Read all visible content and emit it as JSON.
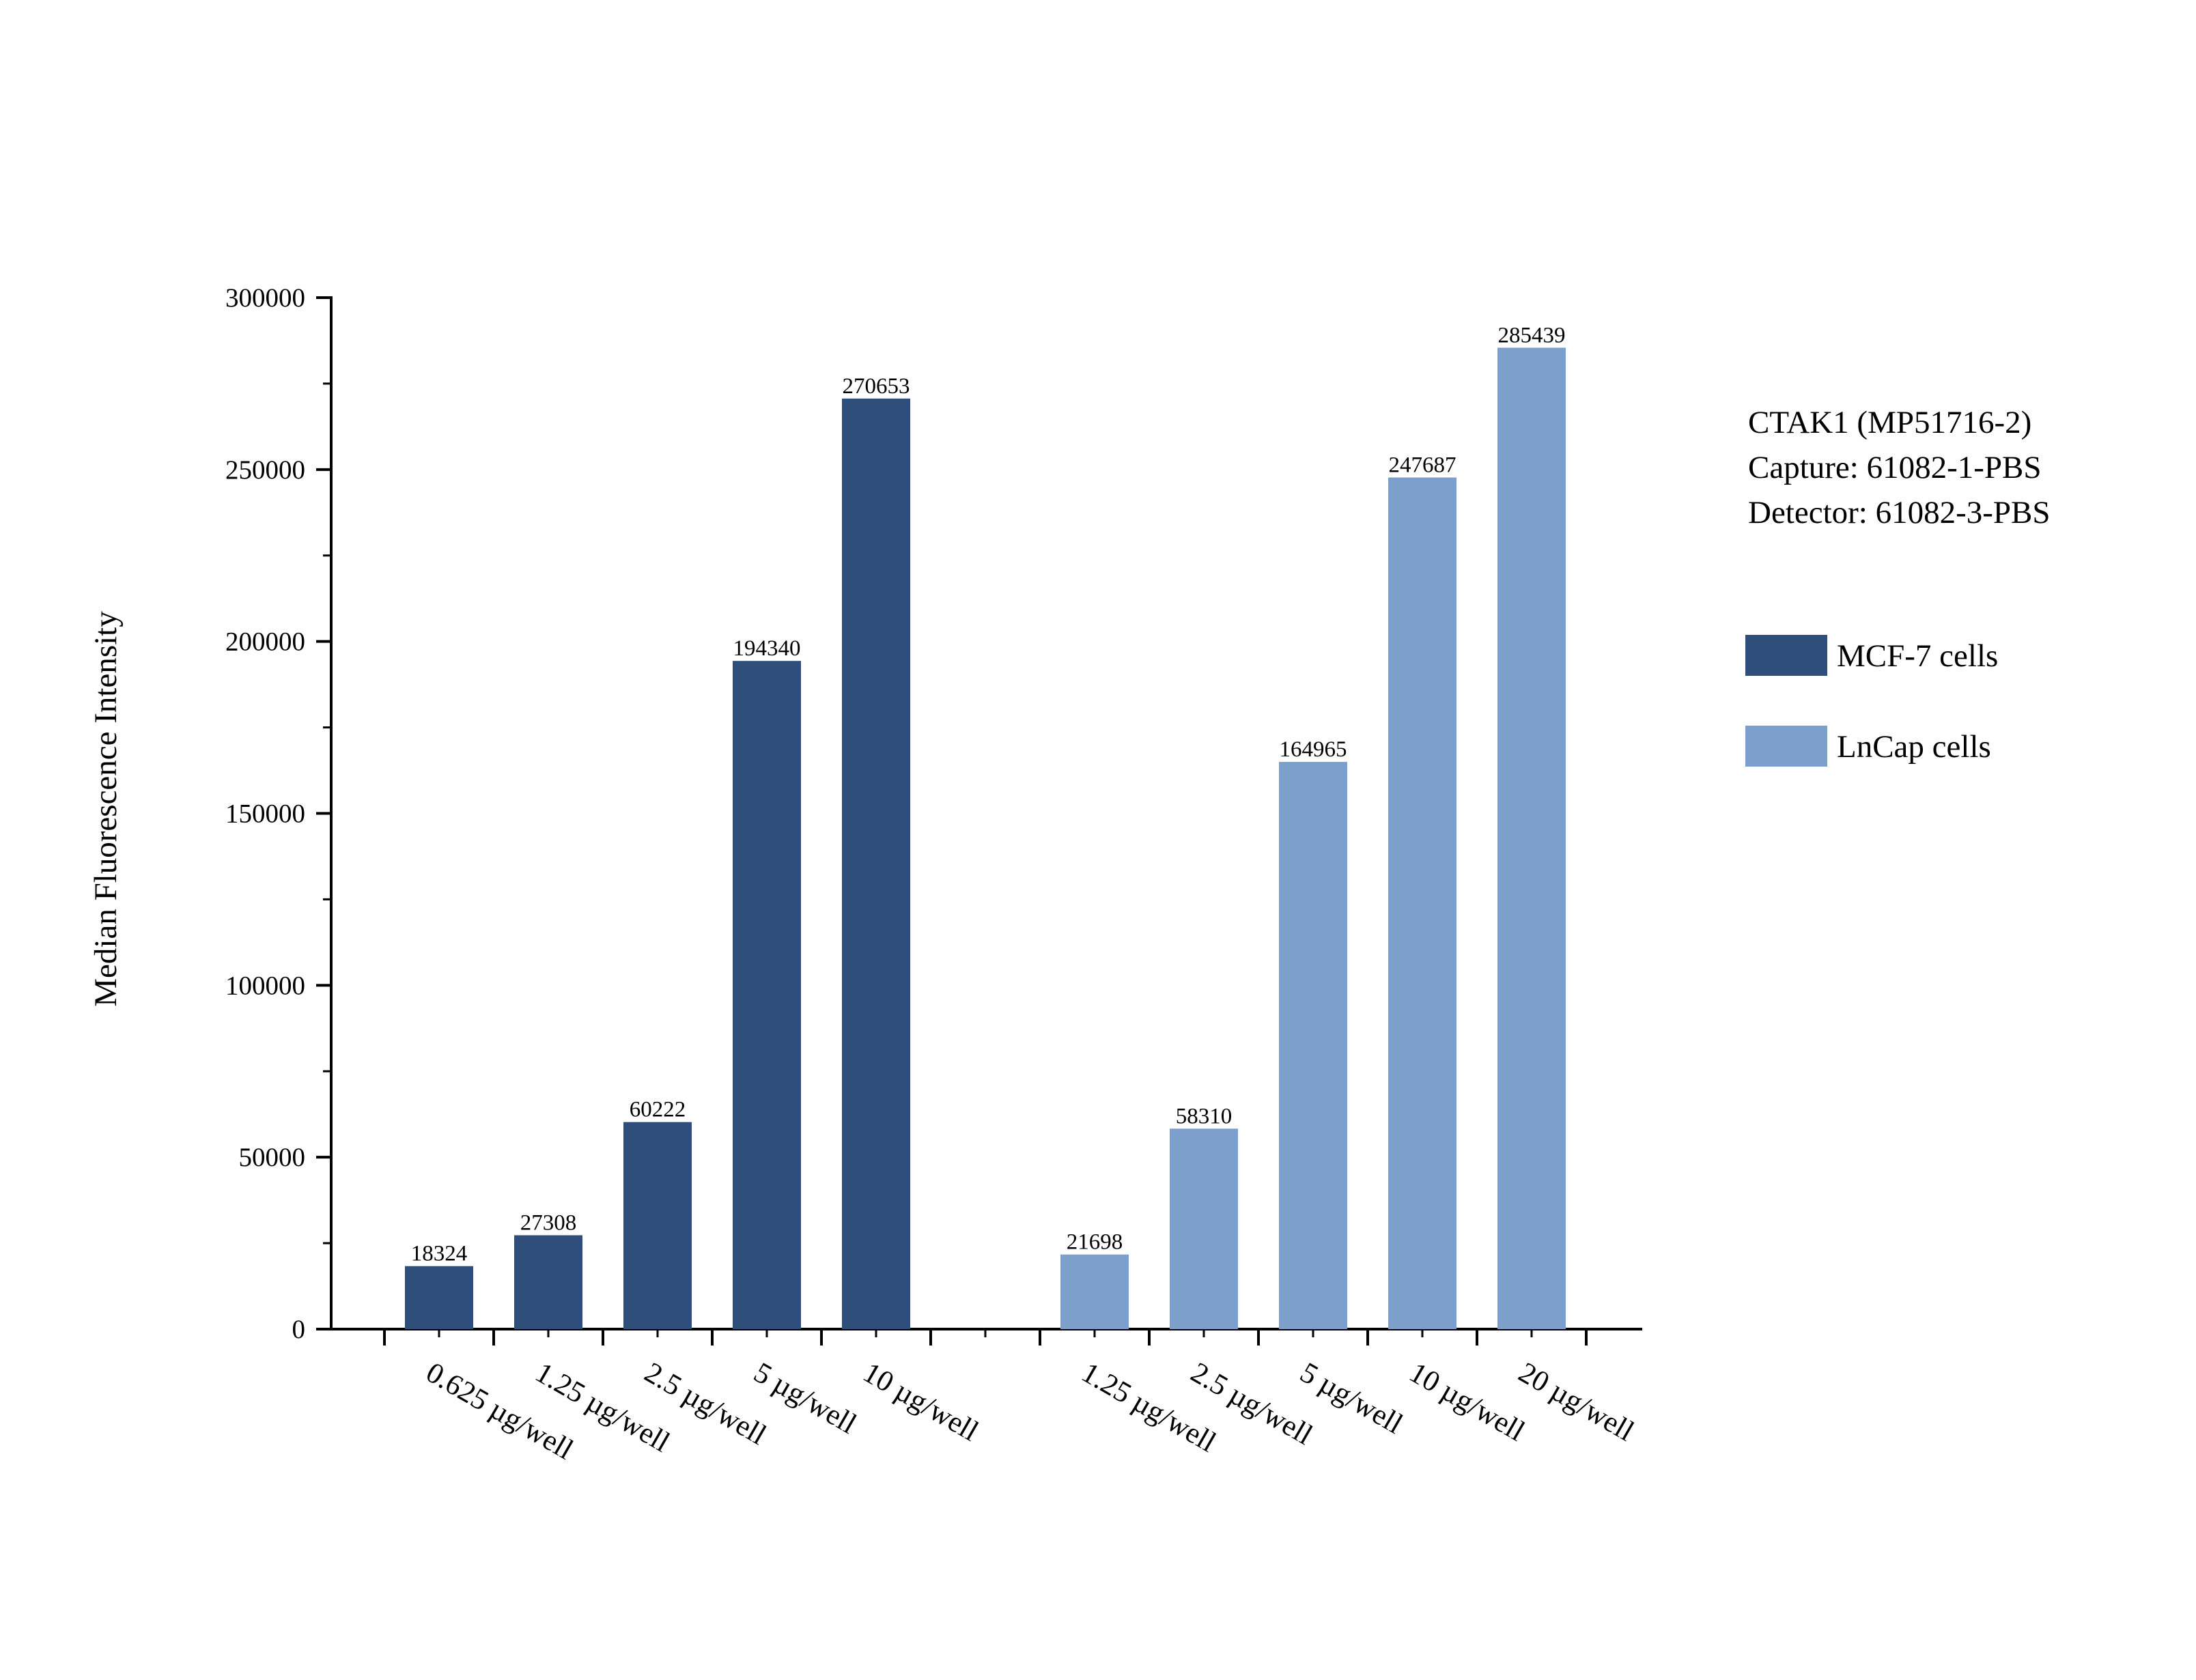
{
  "chart_data": {
    "type": "bar",
    "ylabel": "Median Fluorescence Intensity",
    "xlabel": "",
    "ylim": [
      0,
      300000
    ],
    "y_ticks": [
      "0",
      "50000",
      "100000",
      "150000",
      "200000",
      "250000",
      "300000"
    ],
    "grid": false,
    "legend_position": "right",
    "annotation": [
      "CTAK1 (MP51716-2)",
      "Capture: 61082-1-PBS",
      "Detector: 61082-3-PBS"
    ],
    "series": [
      {
        "name": "MCF-7 cells",
        "color": "#2f4f7a",
        "categories": [
          "0.625 µg/well",
          "1.25 µg/well",
          "2.5 µg/well",
          "5 µg/well",
          "10 µg/well"
        ],
        "values": [
          18324,
          27308,
          60222,
          194340,
          270653
        ],
        "labels": [
          "18324",
          "27308",
          "60222",
          "194340",
          "270653"
        ]
      },
      {
        "name": "LnCap cells",
        "color": "#7d9fcc",
        "categories": [
          "1.25 µg/well",
          "2.5 µg/well",
          "5 µg/well",
          "10 µg/well",
          "20 µg/well"
        ],
        "values": [
          21698,
          58310,
          164965,
          247687,
          285439
        ],
        "labels": [
          "21698",
          "58310",
          "164965",
          "247687",
          "285439"
        ]
      }
    ]
  }
}
